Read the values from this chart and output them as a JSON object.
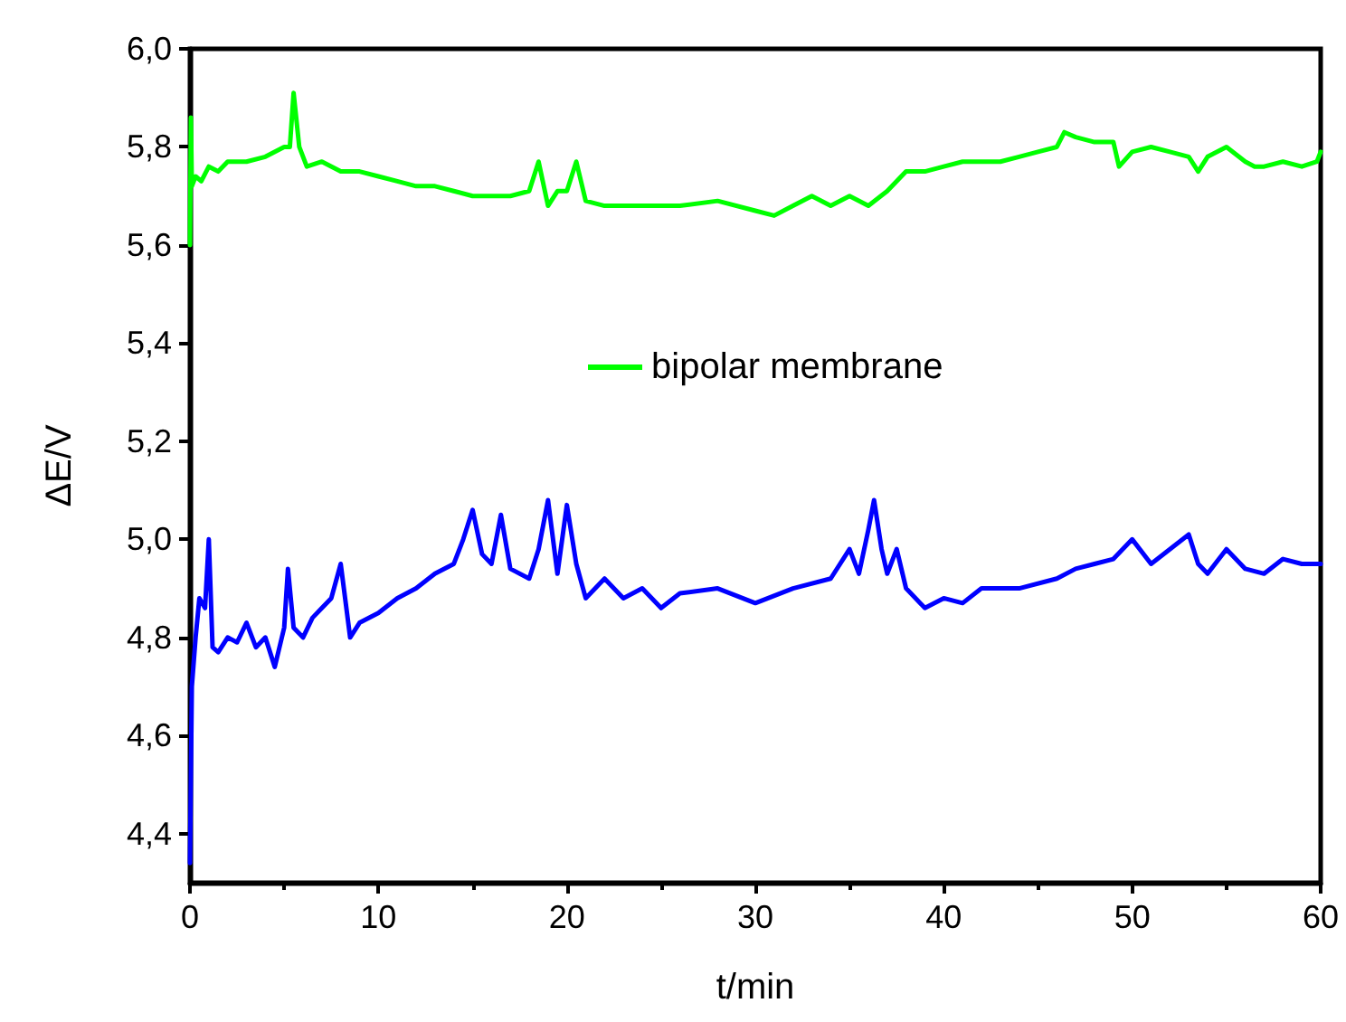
{
  "chart_data": {
    "type": "line",
    "xlabel": "t/min",
    "ylabel": "ΔE/V",
    "xlim": [
      0,
      60
    ],
    "xticks": [
      0,
      10,
      20,
      30,
      40,
      50,
      60
    ],
    "ylim": [
      4.3,
      6.0
    ],
    "yticks": [
      {
        "value": 4.4,
        "label": "4,4"
      },
      {
        "value": 4.6,
        "label": "4,6"
      },
      {
        "value": 4.8,
        "label": "4,8"
      },
      {
        "value": 5.0,
        "label": "5,0"
      },
      {
        "value": 5.2,
        "label": "5,2"
      },
      {
        "value": 5.4,
        "label": "5,4"
      },
      {
        "value": 5.6,
        "label": "5,6"
      },
      {
        "value": 5.8,
        "label": "5,8"
      },
      {
        "value": 6.0,
        "label": "6,0"
      }
    ],
    "grid": false,
    "legend": "right",
    "marker": "none",
    "line_style": "solid",
    "series": [
      {
        "name": "bipolar membrane",
        "color": "#00ff00",
        "x": [
          0,
          0.05,
          0.1,
          0.3,
          0.6,
          1,
          1.5,
          2,
          3,
          4,
          5,
          5.3,
          5.5,
          5.8,
          6.2,
          7,
          8,
          9,
          10,
          11,
          12,
          13,
          14,
          15,
          16,
          17,
          18,
          18.5,
          19,
          19.5,
          20,
          20.5,
          21,
          22,
          24,
          26,
          28,
          30,
          31,
          32,
          33,
          34,
          35,
          36,
          37,
          38,
          39,
          40,
          41,
          42,
          43,
          44,
          45,
          46,
          46.4,
          47,
          48,
          49,
          49.3,
          50,
          51,
          52,
          53,
          53.5,
          54,
          55,
          56,
          56.5,
          57,
          58,
          59,
          59.8,
          60
        ],
        "values": [
          5.6,
          5.86,
          5.72,
          5.74,
          5.73,
          5.76,
          5.75,
          5.77,
          5.77,
          5.78,
          5.8,
          5.8,
          5.91,
          5.8,
          5.76,
          5.77,
          5.75,
          5.75,
          5.74,
          5.73,
          5.72,
          5.72,
          5.71,
          5.7,
          5.7,
          5.7,
          5.71,
          5.77,
          5.68,
          5.71,
          5.71,
          5.77,
          5.69,
          5.68,
          5.68,
          5.68,
          5.69,
          5.67,
          5.66,
          5.68,
          5.7,
          5.68,
          5.7,
          5.68,
          5.71,
          5.75,
          5.75,
          5.76,
          5.77,
          5.77,
          5.77,
          5.78,
          5.79,
          5.8,
          5.83,
          5.82,
          5.81,
          5.81,
          5.76,
          5.79,
          5.8,
          5.79,
          5.78,
          5.75,
          5.78,
          5.8,
          5.77,
          5.76,
          5.76,
          5.77,
          5.76,
          5.77,
          5.79
        ]
      },
      {
        "color": "#0000ff",
        "x": [
          0,
          0.1,
          0.3,
          0.5,
          0.8,
          1,
          1.2,
          1.5,
          2,
          2.5,
          3,
          3.5,
          4,
          4.5,
          5,
          5.2,
          5.5,
          6,
          6.5,
          7,
          7.5,
          8,
          8.5,
          9,
          10,
          11,
          12,
          13,
          14,
          14.5,
          15,
          15.5,
          16,
          16.5,
          17,
          18,
          18.5,
          19,
          19.5,
          20,
          20.5,
          21,
          22,
          23,
          24,
          25,
          26,
          28,
          30,
          32,
          34,
          35,
          35.5,
          36,
          36.3,
          36.7,
          37,
          37.5,
          38,
          39,
          40,
          41,
          42,
          44,
          46,
          47,
          48,
          49,
          50,
          51,
          52,
          53,
          53.5,
          54,
          55,
          56,
          57,
          58,
          59,
          60
        ],
        "values": [
          4.34,
          4.7,
          4.8,
          4.88,
          4.86,
          5.0,
          4.78,
          4.77,
          4.8,
          4.79,
          4.83,
          4.78,
          4.8,
          4.74,
          4.82,
          4.94,
          4.82,
          4.8,
          4.84,
          4.86,
          4.88,
          4.95,
          4.8,
          4.83,
          4.85,
          4.88,
          4.9,
          4.93,
          4.95,
          5.0,
          5.06,
          4.97,
          4.95,
          5.05,
          4.94,
          4.92,
          4.98,
          5.08,
          4.93,
          5.07,
          4.95,
          4.88,
          4.92,
          4.88,
          4.9,
          4.86,
          4.89,
          4.9,
          4.87,
          4.9,
          4.92,
          4.98,
          4.93,
          5.02,
          5.08,
          4.98,
          4.93,
          4.98,
          4.9,
          4.86,
          4.88,
          4.87,
          4.9,
          4.9,
          4.92,
          4.94,
          4.95,
          4.96,
          5.0,
          4.95,
          4.98,
          5.01,
          4.95,
          4.93,
          4.98,
          4.94,
          4.93,
          4.96,
          4.95,
          4.95
        ]
      }
    ]
  }
}
